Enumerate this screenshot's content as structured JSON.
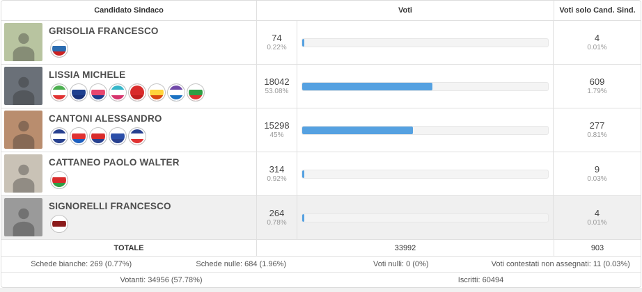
{
  "table": {
    "headers": {
      "candidate": "Candidato Sindaco",
      "votes": "Voti",
      "votes_solo": "Voti solo Cand. Sind."
    }
  },
  "colors": {
    "bar_fill": "#55a1e1",
    "bar_track": "#f4f4f4",
    "highlight_row": "#f0f0f0"
  },
  "candidates": [
    {
      "name": "GRISOLIA FRANCESCO",
      "votes": "74",
      "votes_pct": "0.22%",
      "bar_pct": 0.22,
      "solo_votes": "4",
      "solo_pct": "0.01%",
      "photo_bg": "#b8c4a0",
      "logos": [
        {
          "name": "partito-comunista",
          "colors": [
            "#ffffff",
            "#2b6cb0",
            "#cc2222"
          ]
        }
      ]
    },
    {
      "name": "LISSIA MICHELE",
      "votes": "18042",
      "votes_pct": "53.08%",
      "bar_pct": 53.08,
      "solo_votes": "609",
      "solo_pct": "1.79%",
      "photo_bg": "#6a7078",
      "logos": [
        {
          "name": "alleanza-verdi-sinistra",
          "colors": [
            "#4caf50",
            "#ffffff",
            "#e03131"
          ]
        },
        {
          "name": "azione-calenda-lissia",
          "colors": [
            "#ffffff",
            "#1d3f8f",
            "#16307a"
          ]
        },
        {
          "name": "italia-viva-lissia",
          "colors": [
            "#ffffff",
            "#e8476f",
            "#1d3f8f"
          ]
        },
        {
          "name": "traguardi-pavia-lissia",
          "colors": [
            "#35b6c9",
            "#ffffff",
            "#d6336c"
          ]
        },
        {
          "name": "cittadini-per-pavia",
          "colors": [
            "#d92b2b",
            "#d92b2b",
            "#c02020"
          ]
        },
        {
          "name": "movimento-5-stelle-2050",
          "colors": [
            "#ffffff",
            "#ffd43b",
            "#d9480f"
          ]
        },
        {
          "name": "pavia-a-colori-lissia",
          "colors": [
            "#7048a8",
            "#ffffff",
            "#1971c2"
          ]
        },
        {
          "name": "partito-democratico-lissia",
          "colors": [
            "#ffffff",
            "#2f9e44",
            "#e03131"
          ]
        }
      ]
    },
    {
      "name": "CANTONI ALESSANDRO",
      "votes": "15298",
      "votes_pct": "45%",
      "bar_pct": 45,
      "solo_votes": "277",
      "solo_pct": "0.81%",
      "photo_bg": "#b98d6e",
      "logos": [
        {
          "name": "pavia-prima-cantoni",
          "colors": [
            "#27408f",
            "#ffffff",
            "#27408f"
          ]
        },
        {
          "name": "forza-italia-berlusconi",
          "colors": [
            "#ffffff",
            "#e03131",
            "#1d5fbf"
          ]
        },
        {
          "name": "lista-cantoni",
          "colors": [
            "#ffffff",
            "#d92b2b",
            "#27408f"
          ]
        },
        {
          "name": "lega-cantoni",
          "colors": [
            "#ffffff",
            "#2b4ea8",
            "#27408f"
          ]
        },
        {
          "name": "fratelli-ditalia-giorgia-meloni",
          "colors": [
            "#27408f",
            "#ffffff",
            "#e03131"
          ]
        }
      ]
    },
    {
      "name": "CATTANEO PAOLO WALTER",
      "votes": "314",
      "votes_pct": "0.92%",
      "bar_pct": 0.92,
      "solo_votes": "9",
      "solo_pct": "0.03%",
      "photo_bg": "#c9c2b6",
      "logos": [
        {
          "name": "partito-comunista-italiano",
          "colors": [
            "#ffffff",
            "#d92b2b",
            "#2f9e44"
          ]
        }
      ]
    },
    {
      "name": "SIGNORELLI FRANCESCO",
      "votes": "264",
      "votes_pct": "0.78%",
      "bar_pct": 0.78,
      "solo_votes": "4",
      "solo_pct": "0.01%",
      "photo_bg": "#9a9a9a",
      "logos": [
        {
          "name": "potere-al-popolo",
          "colors": [
            "#ffffff",
            "#8b1a1a",
            "#ffffff"
          ]
        }
      ]
    }
  ],
  "totals": {
    "label": "TOTALE",
    "votes": "33992",
    "solo_votes": "903"
  },
  "footer": {
    "schede_bianche": "Schede bianche: 269 (0.77%)",
    "schede_nulle": "Schede nulle: 684 (1.96%)",
    "voti_nulli": "Voti nulli: 0 (0%)",
    "voti_contestati": "Voti contestati non assegnati: 11 (0.03%)",
    "votanti": "Votanti: 34956 (57.78%)",
    "iscritti": "Iscritti: 60494"
  }
}
